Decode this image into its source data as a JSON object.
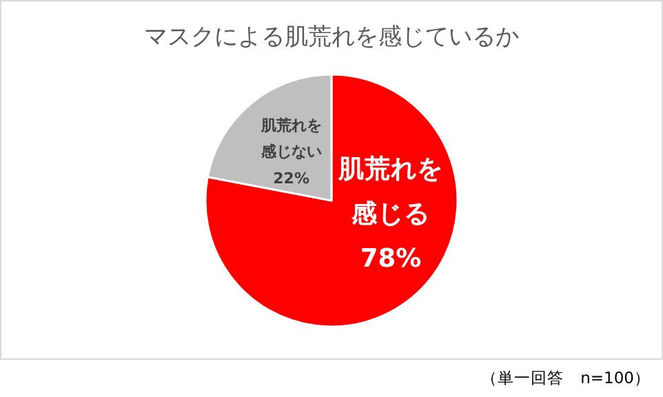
{
  "chart_data": {
    "type": "pie",
    "title": "マスクによる肌荒れを感じているか",
    "categories": [
      "肌荒れを感じる",
      "肌荒れを感じない"
    ],
    "values": [
      78,
      22
    ],
    "colors": [
      "#ff0000",
      "#bfbfbf"
    ],
    "value_labels": [
      "78%",
      "22%"
    ],
    "annotations": [
      "（単一回答　n=100）"
    ]
  }
}
